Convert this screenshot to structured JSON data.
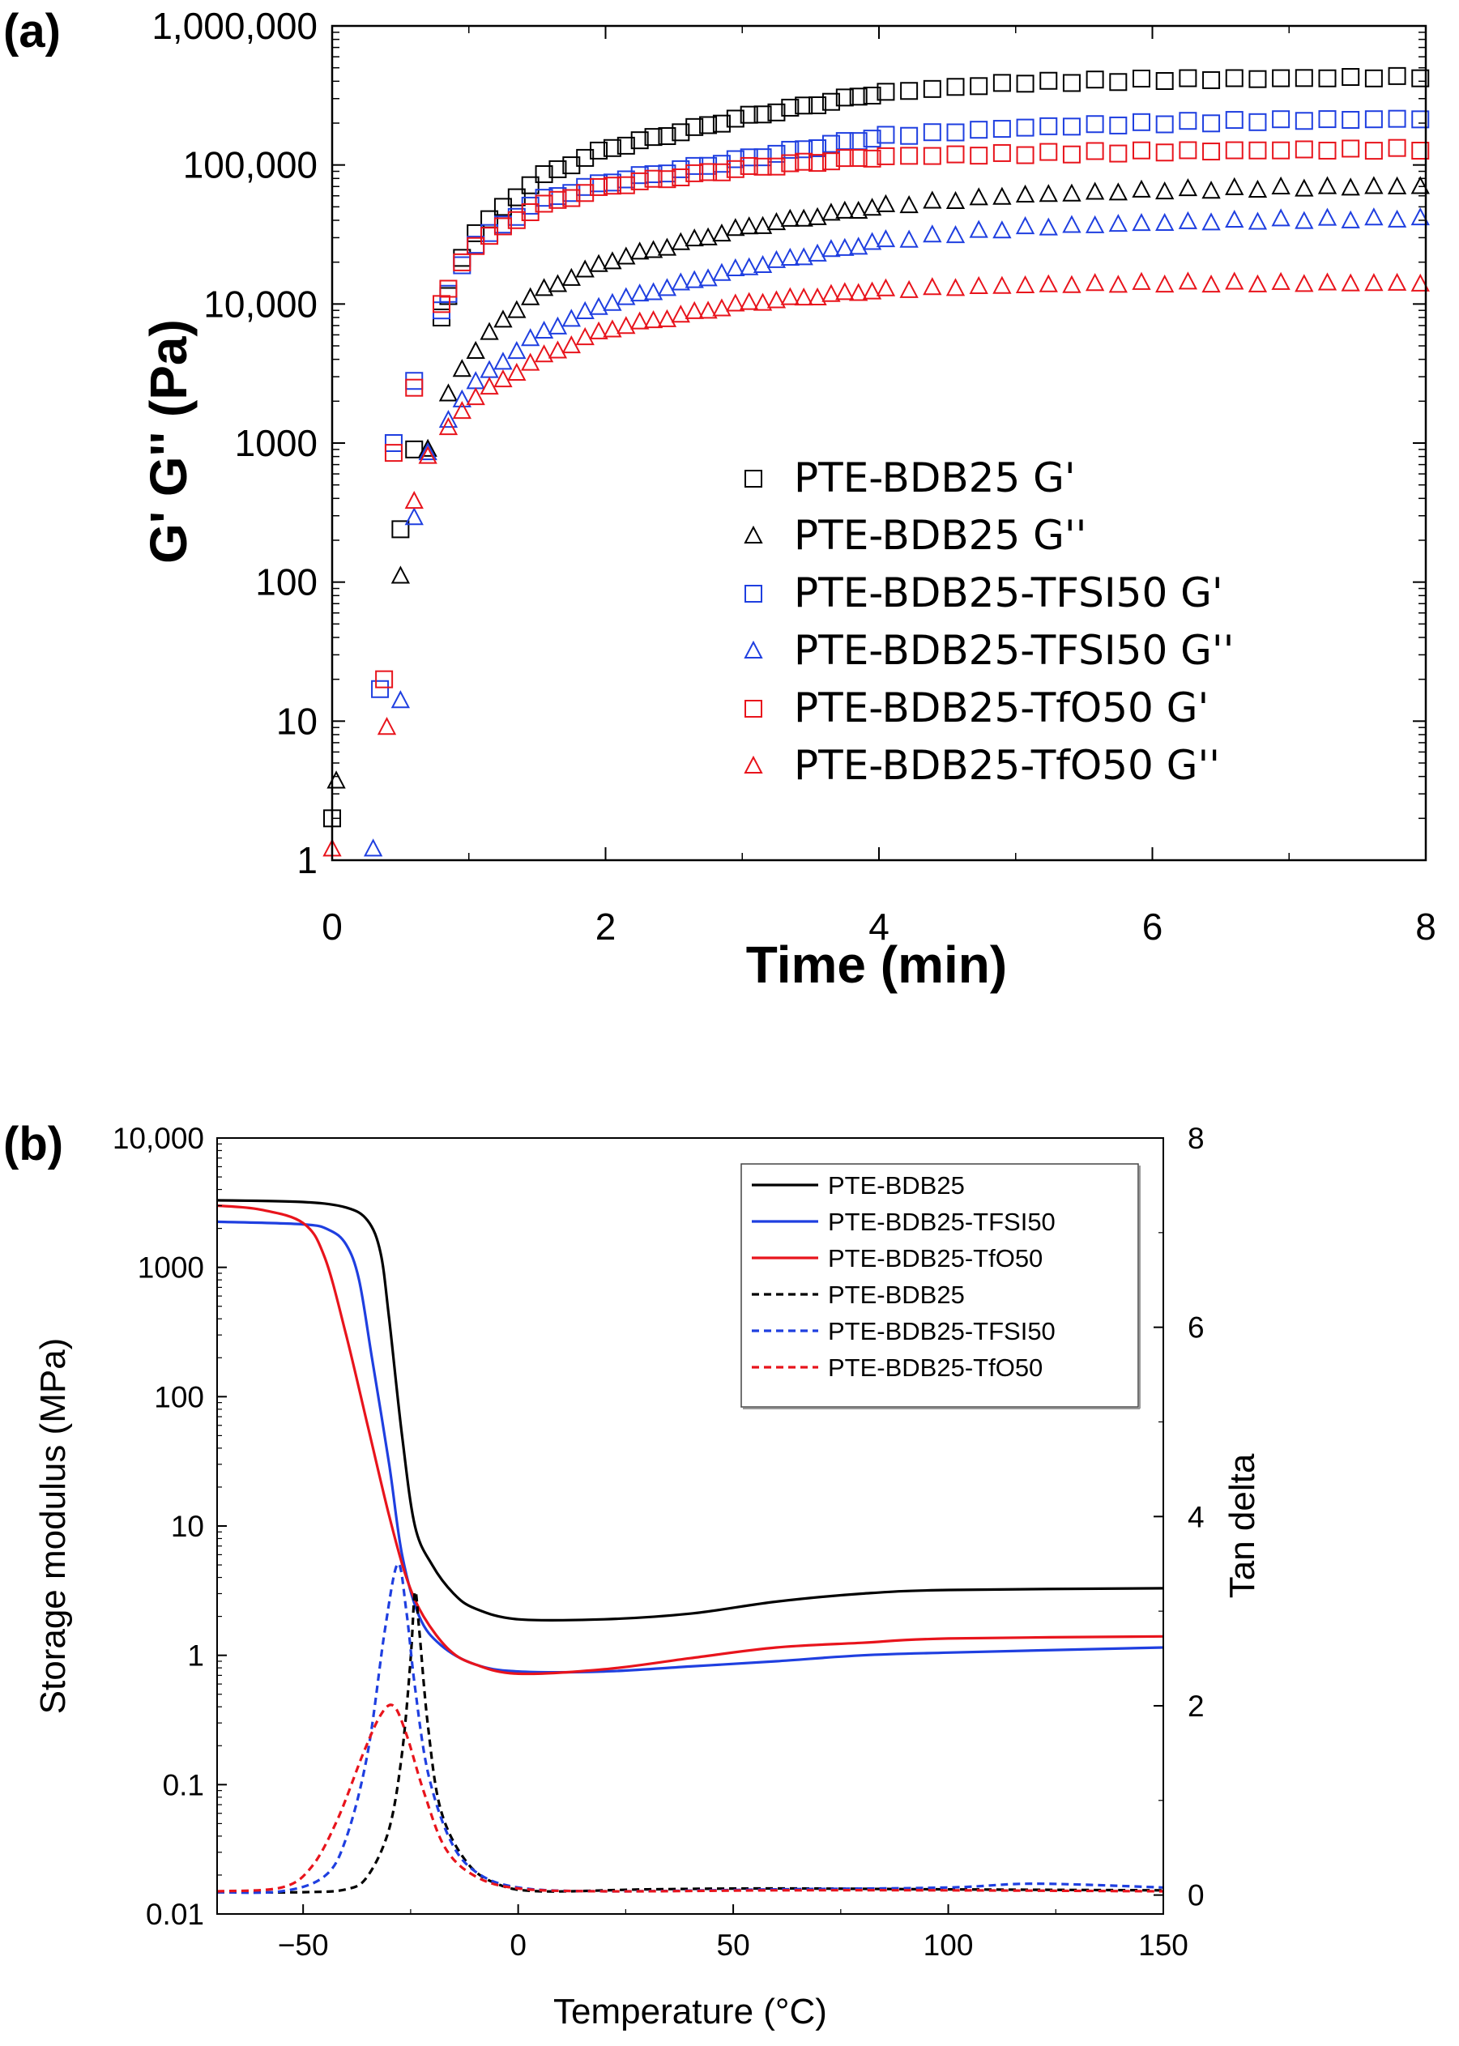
{
  "colors": {
    "PTE-BDB25": "#000000",
    "PTE-BDB25-TFSI50": "#1f3fe0",
    "PTE-BDB25-TfO50": "#e8141c"
  },
  "chart_data": [
    {
      "panel_label": "(a)",
      "type": "scatter",
      "xlabel": "Time (min)",
      "ylabel": "G' G'' (Pa)",
      "xlim": [
        0,
        8
      ],
      "ylim": [
        1,
        1000000
      ],
      "yscale": "log",
      "x_ticks": [
        0,
        2,
        4,
        6,
        8
      ],
      "x_tick_labels": [
        "0",
        "2",
        "4",
        "6",
        "8"
      ],
      "y_ticks": [
        1,
        10,
        100,
        1000,
        10000,
        100000,
        1000000
      ],
      "y_tick_labels": [
        "1",
        "10",
        "100",
        "1000",
        "10,000",
        "100,000",
        "1,000,000"
      ],
      "legend_position": "lower-right",
      "series": [
        {
          "name": "PTE-BDB25 G'",
          "color": "#000000",
          "marker": "square",
          "anchors": [
            [
              0,
              2
            ],
            [
              0.5,
              240
            ],
            [
              0.6,
              900
            ],
            [
              0.8,
              8000
            ],
            [
              1.0,
              30000
            ],
            [
              1.5,
              80000
            ],
            [
              2.0,
              130000
            ],
            [
              3.0,
              220000
            ],
            [
              4.0,
              330000
            ],
            [
              5.0,
              390000
            ],
            [
              6.0,
              410000
            ],
            [
              7.0,
              420000
            ],
            [
              8.0,
              430000
            ]
          ]
        },
        {
          "name": "PTE-BDB25 G''",
          "color": "#000000",
          "marker": "triangle",
          "anchors": [
            [
              0.03,
              3.7
            ],
            [
              0.5,
              110
            ],
            [
              0.7,
              900
            ],
            [
              0.9,
              3000
            ],
            [
              1.2,
              7000
            ],
            [
              1.5,
              12000
            ],
            [
              2.0,
              20000
            ],
            [
              3.0,
              35000
            ],
            [
              4.0,
              50000
            ],
            [
              5.0,
              60000
            ],
            [
              6.0,
              65000
            ],
            [
              7.0,
              68000
            ],
            [
              8.0,
              70000
            ]
          ]
        },
        {
          "name": "PTE-BDB25-TFSI50 G'",
          "color": "#1f3fe0",
          "marker": "square",
          "anchors": [
            [
              0.35,
              17
            ],
            [
              0.45,
              1000
            ],
            [
              0.6,
              2800
            ],
            [
              0.8,
              9000
            ],
            [
              1.0,
              25000
            ],
            [
              1.5,
              55000
            ],
            [
              2.0,
              75000
            ],
            [
              3.0,
              110000
            ],
            [
              4.0,
              160000
            ],
            [
              5.0,
              185000
            ],
            [
              6.0,
              200000
            ],
            [
              7.0,
              210000
            ],
            [
              8.0,
              215000
            ]
          ]
        },
        {
          "name": "PTE-BDB25-TFSI50 G''",
          "color": "#1f3fe0",
          "marker": "triangle",
          "anchors": [
            [
              0.3,
              1.2
            ],
            [
              0.5,
              14
            ],
            [
              0.6,
              290
            ],
            [
              0.7,
              850
            ],
            [
              1.0,
              2500
            ],
            [
              1.5,
              6000
            ],
            [
              2.0,
              10000
            ],
            [
              3.0,
              18000
            ],
            [
              4.0,
              28000
            ],
            [
              5.0,
              35000
            ],
            [
              6.0,
              38000
            ],
            [
              7.0,
              40000
            ],
            [
              8.0,
              41000
            ]
          ]
        },
        {
          "name": "PTE-BDB25-TfO50 G'",
          "color": "#e8141c",
          "marker": "square",
          "anchors": [
            [
              0.38,
              20
            ],
            [
              0.45,
              850
            ],
            [
              0.6,
              2500
            ],
            [
              0.8,
              10000
            ],
            [
              1.0,
              25000
            ],
            [
              1.5,
              50000
            ],
            [
              2.0,
              70000
            ],
            [
              3.0,
              95000
            ],
            [
              4.0,
              115000
            ],
            [
              5.0,
              120000
            ],
            [
              6.0,
              125000
            ],
            [
              7.0,
              128000
            ],
            [
              8.0,
              130000
            ]
          ]
        },
        {
          "name": "PTE-BDB25-TfO50 G''",
          "color": "#e8141c",
          "marker": "triangle",
          "anchors": [
            [
              0.0,
              1.2
            ],
            [
              0.4,
              9
            ],
            [
              0.6,
              380
            ],
            [
              0.7,
              800
            ],
            [
              1.0,
              2000
            ],
            [
              1.5,
              4000
            ],
            [
              2.0,
              6500
            ],
            [
              3.0,
              10000
            ],
            [
              4.0,
              12500
            ],
            [
              5.0,
              13500
            ],
            [
              6.0,
              14000
            ],
            [
              7.0,
              14000
            ],
            [
              8.0,
              14000
            ]
          ]
        }
      ]
    },
    {
      "panel_label": "(b)",
      "type": "line",
      "xlabel": "Temperature (°C)",
      "ylabel": "Storage modulus (MPa)",
      "y2label": "Tan delta",
      "xlim": [
        -70,
        150
      ],
      "ylim": [
        0.01,
        10000
      ],
      "yscale": "log",
      "y2lim": [
        -0.2,
        8
      ],
      "x_ticks": [
        -50,
        0,
        50,
        100,
        150
      ],
      "x_tick_labels": [
        "−50",
        "0",
        "50",
        "100",
        "150"
      ],
      "y_ticks": [
        0.01,
        0.1,
        1,
        10,
        100,
        1000,
        10000
      ],
      "y_tick_labels": [
        "0.01",
        "0.1",
        "1",
        "10",
        "100",
        "1000",
        "10,000"
      ],
      "y2_ticks": [
        0,
        2,
        4,
        6,
        8
      ],
      "y2_tick_labels": [
        "0",
        "2",
        "4",
        "6",
        "8"
      ],
      "legend_position": "top-right",
      "series": [
        {
          "name": "PTE-BDB25",
          "color": "#000000",
          "style": "solid",
          "axis": "left",
          "points": [
            [
              -70,
              3300
            ],
            [
              -50,
              3200
            ],
            [
              -40,
              2900
            ],
            [
              -35,
              2300
            ],
            [
              -32,
              1300
            ],
            [
              -30,
              400
            ],
            [
              -27,
              50
            ],
            [
              -24,
              10
            ],
            [
              -20,
              5
            ],
            [
              -15,
              3
            ],
            [
              -10,
              2.3
            ],
            [
              0,
              1.9
            ],
            [
              20,
              1.9
            ],
            [
              40,
              2.1
            ],
            [
              60,
              2.6
            ],
            [
              80,
              3.0
            ],
            [
              100,
              3.2
            ],
            [
              150,
              3.3
            ]
          ]
        },
        {
          "name": "PTE-BDB25-TFSI50",
          "color": "#1f3fe0",
          "style": "solid",
          "axis": "left",
          "points": [
            [
              -70,
              2250
            ],
            [
              -50,
              2150
            ],
            [
              -44,
              1950
            ],
            [
              -40,
              1500
            ],
            [
              -37,
              800
            ],
            [
              -34,
              200
            ],
            [
              -30,
              30
            ],
            [
              -27,
              6
            ],
            [
              -23,
              2
            ],
            [
              -18,
              1.2
            ],
            [
              -10,
              0.85
            ],
            [
              0,
              0.75
            ],
            [
              20,
              0.75
            ],
            [
              40,
              0.82
            ],
            [
              60,
              0.9
            ],
            [
              80,
              1.0
            ],
            [
              100,
              1.05
            ],
            [
              150,
              1.15
            ]
          ]
        },
        {
          "name": "PTE-BDB25-TfO50",
          "color": "#e8141c",
          "style": "solid",
          "axis": "left",
          "points": [
            [
              -70,
              3000
            ],
            [
              -60,
              2800
            ],
            [
              -50,
              2200
            ],
            [
              -45,
              1200
            ],
            [
              -40,
              300
            ],
            [
              -35,
              60
            ],
            [
              -30,
              12
            ],
            [
              -26,
              4
            ],
            [
              -22,
              2
            ],
            [
              -16,
              1.1
            ],
            [
              -10,
              0.85
            ],
            [
              0,
              0.72
            ],
            [
              20,
              0.78
            ],
            [
              40,
              0.95
            ],
            [
              60,
              1.15
            ],
            [
              80,
              1.25
            ],
            [
              100,
              1.35
            ],
            [
              150,
              1.4
            ]
          ]
        },
        {
          "name": "PTE-BDB25",
          "color": "#000000",
          "style": "dashed",
          "axis": "right",
          "points": [
            [
              -70,
              0.03
            ],
            [
              -50,
              0.03
            ],
            [
              -40,
              0.06
            ],
            [
              -35,
              0.2
            ],
            [
              -30,
              0.7
            ],
            [
              -27,
              1.5
            ],
            [
              -25,
              2.5
            ],
            [
              -24,
              3.2
            ],
            [
              -23,
              2.8
            ],
            [
              -21,
              1.8
            ],
            [
              -18,
              0.9
            ],
            [
              -12,
              0.35
            ],
            [
              -5,
              0.12
            ],
            [
              5,
              0.04
            ],
            [
              30,
              0.06
            ],
            [
              60,
              0.07
            ],
            [
              100,
              0.06
            ],
            [
              150,
              0.05
            ]
          ]
        },
        {
          "name": "PTE-BDB25-TFSI50",
          "color": "#1f3fe0",
          "style": "dashed",
          "axis": "right",
          "points": [
            [
              -70,
              0.03
            ],
            [
              -55,
              0.04
            ],
            [
              -45,
              0.2
            ],
            [
              -40,
              0.6
            ],
            [
              -35,
              1.5
            ],
            [
              -31,
              2.8
            ],
            [
              -28,
              3.5
            ],
            [
              -26,
              3.0
            ],
            [
              -24,
              2.2
            ],
            [
              -21,
              1.3
            ],
            [
              -16,
              0.6
            ],
            [
              -10,
              0.25
            ],
            [
              0,
              0.08
            ],
            [
              20,
              0.04
            ],
            [
              60,
              0.06
            ],
            [
              100,
              0.08
            ],
            [
              120,
              0.12
            ],
            [
              150,
              0.08
            ]
          ]
        },
        {
          "name": "PTE-BDB25-TfO50",
          "color": "#e8141c",
          "style": "dashed",
          "axis": "right",
          "points": [
            [
              -70,
              0.04
            ],
            [
              -55,
              0.08
            ],
            [
              -48,
              0.3
            ],
            [
              -42,
              0.8
            ],
            [
              -36,
              1.5
            ],
            [
              -32,
              1.9
            ],
            [
              -29,
              2.0
            ],
            [
              -26,
              1.7
            ],
            [
              -22,
              1.1
            ],
            [
              -17,
              0.5
            ],
            [
              -10,
              0.2
            ],
            [
              0,
              0.07
            ],
            [
              20,
              0.04
            ],
            [
              60,
              0.05
            ],
            [
              100,
              0.05
            ],
            [
              150,
              0.04
            ]
          ]
        }
      ]
    }
  ]
}
